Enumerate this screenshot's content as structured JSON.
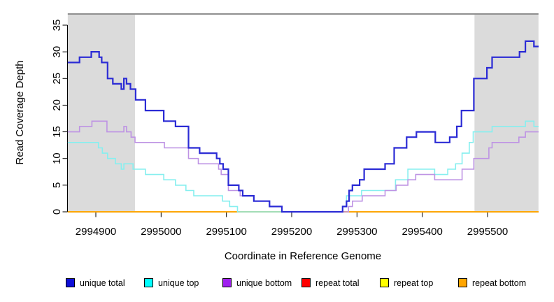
{
  "chart_data": {
    "type": "line",
    "step_style": "step-after",
    "title": "",
    "xlabel": "Coordinate in Reference Genome",
    "ylabel": "Read Coverage Depth",
    "x_ticks": [
      2994900,
      2995000,
      2995100,
      2995200,
      2995300,
      2995400,
      2995500
    ],
    "y_ticks": [
      0,
      5,
      10,
      15,
      20,
      25,
      30,
      35
    ],
    "xlim": [
      2994857,
      2995578
    ],
    "ylim": [
      0,
      37.2
    ],
    "grid": false,
    "legend_position": "bottom-horizontal",
    "background_color": "#ffffff",
    "shaded_regions": [
      {
        "name": "left-shaded-region",
        "x0": 2994857,
        "x1": 2994960,
        "color": "#DBDBDB"
      },
      {
        "name": "right-shaded-region",
        "x0": 2995480,
        "x1": 2995578,
        "color": "#DBDBDB"
      }
    ],
    "top_boundary_line": {
      "x0": 2994857,
      "x1": 2995578,
      "color": "#8F8F8F"
    },
    "series": [
      {
        "name": "unique total",
        "line_color": "#2B2BD5",
        "legend_color": "#0E0ED8",
        "line_width": 2.2,
        "points": [
          [
            2994857,
            28
          ],
          [
            2994875,
            29
          ],
          [
            2994893,
            30
          ],
          [
            2994905,
            29
          ],
          [
            2994909,
            28
          ],
          [
            2994918,
            25
          ],
          [
            2994926,
            24
          ],
          [
            2994939,
            23
          ],
          [
            2994943,
            25
          ],
          [
            2994947,
            24
          ],
          [
            2994953,
            23
          ],
          [
            2994961,
            21
          ],
          [
            2994976,
            19
          ],
          [
            2995004,
            17
          ],
          [
            2995022,
            16
          ],
          [
            2995042,
            12
          ],
          [
            2995059,
            11
          ],
          [
            2995085,
            10
          ],
          [
            2995090,
            9
          ],
          [
            2995095,
            8
          ],
          [
            2995103,
            5
          ],
          [
            2995119,
            4
          ],
          [
            2995125,
            3
          ],
          [
            2995142,
            2
          ],
          [
            2995166,
            1
          ],
          [
            2995185,
            0
          ],
          [
            2995278,
            1
          ],
          [
            2995284,
            2
          ],
          [
            2995288,
            4
          ],
          [
            2995293,
            5
          ],
          [
            2995304,
            6
          ],
          [
            2995311,
            8
          ],
          [
            2995343,
            9
          ],
          [
            2995357,
            12
          ],
          [
            2995376,
            14
          ],
          [
            2995391,
            15
          ],
          [
            2995420,
            13
          ],
          [
            2995442,
            14
          ],
          [
            2995453,
            16
          ],
          [
            2995460,
            19
          ],
          [
            2995479,
            25
          ],
          [
            2995499,
            27
          ],
          [
            2995507,
            29
          ],
          [
            2995549,
            30
          ],
          [
            2995558,
            32
          ],
          [
            2995571,
            31
          ]
        ]
      },
      {
        "name": "unique top",
        "line_color": "#86EFEF",
        "legend_color": "#00FFFF",
        "line_width": 1.6,
        "points": [
          [
            2994857,
            13
          ],
          [
            2994904,
            12
          ],
          [
            2994910,
            11
          ],
          [
            2994918,
            10
          ],
          [
            2994930,
            9
          ],
          [
            2994939,
            8
          ],
          [
            2994943,
            9
          ],
          [
            2994957,
            8
          ],
          [
            2994976,
            7
          ],
          [
            2995004,
            6
          ],
          [
            2995022,
            5
          ],
          [
            2995038,
            4
          ],
          [
            2995050,
            3
          ],
          [
            2995094,
            2
          ],
          [
            2995105,
            1
          ],
          [
            2995117,
            0
          ],
          [
            2995278,
            1
          ],
          [
            2995284,
            3
          ],
          [
            2995307,
            4
          ],
          [
            2995359,
            6
          ],
          [
            2995378,
            8
          ],
          [
            2995419,
            7
          ],
          [
            2995439,
            8
          ],
          [
            2995451,
            9
          ],
          [
            2995461,
            11
          ],
          [
            2995472,
            13
          ],
          [
            2995478,
            15
          ],
          [
            2995507,
            16
          ],
          [
            2995558,
            17
          ],
          [
            2995571,
            16
          ]
        ]
      },
      {
        "name": "unique bottom",
        "line_color": "#BE93E4",
        "legend_color": "#A020F0",
        "line_width": 1.6,
        "points": [
          [
            2994857,
            15
          ],
          [
            2994875,
            16
          ],
          [
            2994894,
            17
          ],
          [
            2994917,
            15
          ],
          [
            2994943,
            16
          ],
          [
            2994947,
            15
          ],
          [
            2994954,
            14
          ],
          [
            2994960,
            13
          ],
          [
            2995005,
            12
          ],
          [
            2995042,
            10
          ],
          [
            2995057,
            9
          ],
          [
            2995088,
            8
          ],
          [
            2995092,
            7
          ],
          [
            2995103,
            4
          ],
          [
            2995121,
            3
          ],
          [
            2995142,
            2
          ],
          [
            2995166,
            1
          ],
          [
            2995185,
            0
          ],
          [
            2995287,
            1
          ],
          [
            2995293,
            2
          ],
          [
            2995308,
            3
          ],
          [
            2995343,
            4
          ],
          [
            2995360,
            5
          ],
          [
            2995378,
            6
          ],
          [
            2995390,
            7
          ],
          [
            2995419,
            6
          ],
          [
            2995461,
            8
          ],
          [
            2995479,
            10
          ],
          [
            2995502,
            12
          ],
          [
            2995507,
            13
          ],
          [
            2995548,
            14
          ],
          [
            2995558,
            15
          ]
        ]
      },
      {
        "name": "repeat total",
        "line_color": "#FF0000",
        "legend_color": "#FF0000",
        "line_width": 1.6,
        "points": [
          [
            2994857,
            0
          ],
          [
            2995578,
            0
          ]
        ]
      },
      {
        "name": "repeat top",
        "line_color": "#FFFF00",
        "legend_color": "#FFFF00",
        "line_width": 1.6,
        "points": [
          [
            2994857,
            0
          ],
          [
            2995578,
            0
          ]
        ]
      },
      {
        "name": "repeat bottom",
        "line_color": "#FFA500",
        "legend_color": "#FFA500",
        "line_width": 1.8,
        "points": [
          [
            2994857,
            0
          ],
          [
            2995578,
            0
          ]
        ]
      }
    ]
  }
}
